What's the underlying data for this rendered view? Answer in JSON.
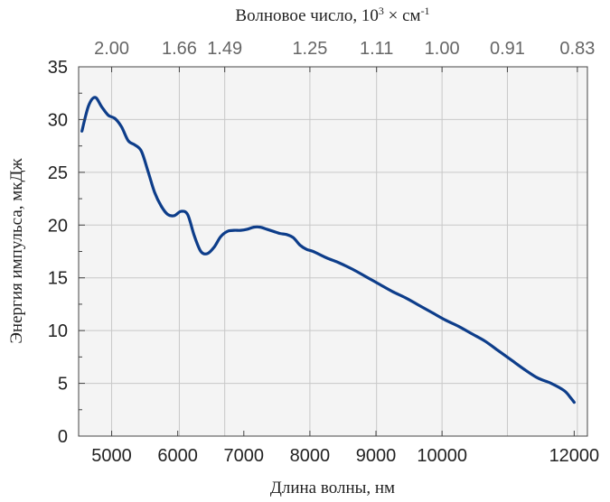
{
  "chart_data": {
    "type": "line",
    "xlabel": "Длина волны, нм",
    "ylabel": "Энергия импульса, мкДж",
    "top_axis_label": {
      "prefix": "Волновое число, 10",
      "exp1": "3",
      "middle": " × см",
      "exp2": "-1"
    },
    "xlim": [
      4500,
      12200
    ],
    "ylim": [
      0,
      35
    ],
    "x_ticks": [
      {
        "value": 5000,
        "label": "5000"
      },
      {
        "value": 6000,
        "label": "6000"
      },
      {
        "value": 7000,
        "label": "7000"
      },
      {
        "value": 8000,
        "label": "8000"
      },
      {
        "value": 9000,
        "label": "9000"
      },
      {
        "value": 10000,
        "label": "10000"
      },
      {
        "value": 12000,
        "label": "12000"
      }
    ],
    "y_ticks": [
      {
        "value": 0,
        "label": "0"
      },
      {
        "value": 5,
        "label": "5"
      },
      {
        "value": 10,
        "label": "10"
      },
      {
        "value": 15,
        "label": "15"
      },
      {
        "value": 20,
        "label": "20"
      },
      {
        "value": 25,
        "label": "25"
      },
      {
        "value": 30,
        "label": "30"
      },
      {
        "value": 35,
        "label": "35"
      }
    ],
    "top_ticks": [
      {
        "wavelength": 5000,
        "label": "2.00"
      },
      {
        "wavelength": 6024,
        "label": "1.66"
      },
      {
        "wavelength": 6711,
        "label": "1.49"
      },
      {
        "wavelength": 8000,
        "label": "1.25"
      },
      {
        "wavelength": 9009,
        "label": "1.11"
      },
      {
        "wavelength": 10000,
        "label": "1.00"
      },
      {
        "wavelength": 10989,
        "label": "0.91"
      },
      {
        "wavelength": 12048,
        "label": "0.83"
      }
    ],
    "grid": true,
    "series": [
      {
        "color": "#0d3d8a",
        "x": [
          4550,
          4650,
          4750,
          4850,
          4950,
          5050,
          5150,
          5250,
          5350,
          5450,
          5550,
          5650,
          5750,
          5850,
          5950,
          6050,
          6150,
          6250,
          6350,
          6450,
          6550,
          6650,
          6750,
          6850,
          6950,
          7050,
          7150,
          7250,
          7350,
          7450,
          7550,
          7650,
          7750,
          7850,
          7950,
          8050,
          8250,
          8450,
          8650,
          8850,
          9050,
          9250,
          9450,
          9650,
          9850,
          10050,
          10250,
          10450,
          10650,
          10850,
          11050,
          11250,
          11450,
          11650,
          11850,
          11950,
          12000
        ],
        "y": [
          28.9,
          31.3,
          32.1,
          31.2,
          30.4,
          30.1,
          29.3,
          28.0,
          27.6,
          27.0,
          25.1,
          23.1,
          21.8,
          21.0,
          20.9,
          21.3,
          21.0,
          19.0,
          17.5,
          17.3,
          17.9,
          18.9,
          19.4,
          19.5,
          19.5,
          19.6,
          19.8,
          19.8,
          19.6,
          19.4,
          19.2,
          19.1,
          18.8,
          18.1,
          17.7,
          17.5,
          16.9,
          16.4,
          15.8,
          15.1,
          14.4,
          13.7,
          13.1,
          12.4,
          11.7,
          11.0,
          10.4,
          9.7,
          9.0,
          8.1,
          7.2,
          6.3,
          5.5,
          5.0,
          4.3,
          3.6,
          3.2
        ]
      }
    ]
  }
}
